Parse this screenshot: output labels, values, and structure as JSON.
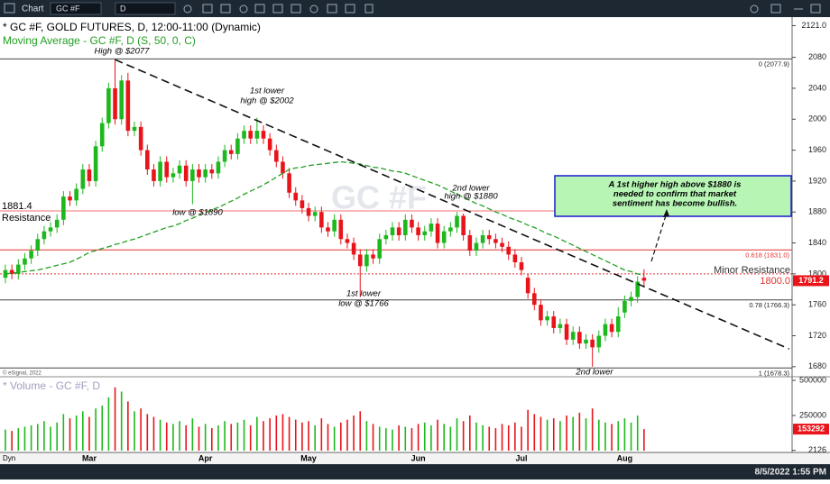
{
  "toolbar": {
    "title": "Chart",
    "symbol": "GC #F",
    "interval": "D"
  },
  "footer": {
    "mode": "Dyn",
    "timestamp": "8/5/2022 1:55 PM"
  },
  "copyright": "© eSignal, 2022",
  "chart_data": [
    {
      "type": "candlestick",
      "title": "* GC #F, GOLD FUTURES, D, 12:00-11:00 (Dynamic)",
      "watermark": "GC #F",
      "categories": [
        null,
        null,
        null,
        null,
        null,
        null,
        null,
        null,
        null,
        null,
        null,
        null,
        null,
        "Mar",
        null,
        null,
        null,
        null,
        null,
        null,
        null,
        null,
        null,
        null,
        null,
        null,
        null,
        null,
        null,
        null,
        null,
        "Apr",
        null,
        null,
        null,
        null,
        null,
        null,
        null,
        null,
        null,
        null,
        null,
        null,
        null,
        null,
        null,
        "May",
        null,
        null,
        null,
        null,
        null,
        null,
        null,
        null,
        null,
        null,
        null,
        null,
        null,
        null,
        null,
        null,
        "Jun",
        null,
        null,
        null,
        null,
        null,
        null,
        null,
        null,
        null,
        null,
        null,
        null,
        null,
        null,
        null,
        "Jul",
        null,
        null,
        null,
        null,
        null,
        null,
        null,
        null,
        null,
        null,
        null,
        null,
        null,
        null,
        null,
        "Aug",
        null,
        null,
        null
      ],
      "open": [
        1795,
        1805,
        1800,
        1812,
        1820,
        1830,
        1845,
        1855,
        1860,
        1870,
        1900,
        1895,
        1910,
        1935,
        1920,
        1965,
        1995,
        2040,
        2000,
        2050,
        1985,
        1990,
        1960,
        1935,
        1920,
        1945,
        1925,
        1930,
        1940,
        1920,
        1935,
        1925,
        1935,
        1930,
        1945,
        1960,
        1955,
        1975,
        1985,
        1975,
        1985,
        1975,
        1960,
        1945,
        1930,
        1905,
        1895,
        1885,
        1875,
        1880,
        1860,
        1855,
        1870,
        1845,
        1840,
        1825,
        1810,
        1825,
        1820,
        1845,
        1850,
        1860,
        1850,
        1870,
        1860,
        1850,
        1855,
        1865,
        1840,
        1855,
        1860,
        1875,
        1850,
        1830,
        1840,
        1850,
        1845,
        1840,
        1835,
        1825,
        1815,
        1795,
        1775,
        1760,
        1740,
        1745,
        1730,
        1735,
        1715,
        1725,
        1710,
        1715,
        1705,
        1720,
        1735,
        1725,
        1750,
        1765,
        1770,
        1795
      ],
      "high": [
        1812,
        1812,
        1819,
        1827,
        1837,
        1852,
        1862,
        1867,
        1877,
        1907,
        1907,
        1917,
        1942,
        1942,
        1972,
        2002,
        2047,
        2077,
        2057,
        2060,
        1997,
        1997,
        1967,
        1942,
        1952,
        1952,
        1937,
        1947,
        1947,
        1942,
        1942,
        1942,
        1942,
        1952,
        1967,
        1967,
        1982,
        1992,
        1992,
        2002,
        1992,
        1982,
        1967,
        1952,
        1937,
        1912,
        1902,
        1892,
        1887,
        1887,
        1867,
        1877,
        1877,
        1852,
        1847,
        1832,
        1832,
        1832,
        1852,
        1857,
        1867,
        1867,
        1877,
        1877,
        1867,
        1862,
        1872,
        1872,
        1862,
        1867,
        1880,
        1878,
        1857,
        1847,
        1857,
        1857,
        1852,
        1847,
        1842,
        1832,
        1822,
        1800,
        1782,
        1767,
        1752,
        1752,
        1742,
        1742,
        1732,
        1732,
        1722,
        1722,
        1727,
        1742,
        1742,
        1757,
        1772,
        1777,
        1797,
        1806
      ],
      "low": [
        1788,
        1793,
        1793,
        1805,
        1813,
        1823,
        1838,
        1848,
        1853,
        1863,
        1888,
        1888,
        1903,
        1913,
        1913,
        1958,
        1988,
        1993,
        1993,
        1978,
        1978,
        1953,
        1928,
        1913,
        1913,
        1918,
        1918,
        1923,
        1913,
        1890,
        1918,
        1918,
        1923,
        1923,
        1938,
        1948,
        1948,
        1968,
        1968,
        1968,
        1968,
        1953,
        1938,
        1923,
        1898,
        1888,
        1878,
        1868,
        1868,
        1853,
        1848,
        1848,
        1838,
        1833,
        1818,
        1770,
        1803,
        1813,
        1813,
        1838,
        1843,
        1843,
        1843,
        1853,
        1843,
        1843,
        1848,
        1833,
        1833,
        1848,
        1853,
        1843,
        1823,
        1823,
        1833,
        1838,
        1833,
        1828,
        1818,
        1808,
        1798,
        1768,
        1753,
        1733,
        1733,
        1723,
        1723,
        1708,
        1708,
        1703,
        1703,
        1680,
        1698,
        1713,
        1718,
        1718,
        1743,
        1758,
        1763,
        1784
      ],
      "close": [
        1805,
        1800,
        1812,
        1820,
        1830,
        1845,
        1855,
        1860,
        1870,
        1900,
        1895,
        1910,
        1935,
        1920,
        1965,
        1995,
        2040,
        2000,
        2050,
        1985,
        1990,
        1960,
        1935,
        1920,
        1945,
        1925,
        1930,
        1940,
        1920,
        1935,
        1925,
        1935,
        1930,
        1945,
        1960,
        1955,
        1975,
        1985,
        1975,
        1985,
        1975,
        1960,
        1945,
        1930,
        1905,
        1895,
        1885,
        1875,
        1880,
        1860,
        1855,
        1870,
        1845,
        1840,
        1825,
        1810,
        1825,
        1820,
        1845,
        1850,
        1860,
        1850,
        1870,
        1860,
        1850,
        1855,
        1865,
        1840,
        1855,
        1860,
        1875,
        1850,
        1830,
        1840,
        1850,
        1845,
        1840,
        1835,
        1825,
        1815,
        1805,
        1775,
        1760,
        1740,
        1745,
        1730,
        1735,
        1715,
        1725,
        1710,
        1715,
        1705,
        1720,
        1735,
        1725,
        1745,
        1765,
        1770,
        1790,
        1791.2
      ],
      "up_color": "#1db81d",
      "down_color": "#e8141a",
      "series": [
        {
          "name": "Moving Average - GC #F, D (S, 50, 0, C)",
          "color": "#22a022",
          "values": [
            1800,
            1801,
            1802,
            1803,
            1804,
            1805,
            1807,
            1809,
            1811,
            1813,
            1815,
            1819,
            1823,
            1828,
            1830,
            1833,
            1835,
            1838,
            1840,
            1843,
            1845,
            1848,
            1851,
            1854,
            1857,
            1860,
            1862,
            1865,
            1869,
            1872,
            1876,
            1879,
            1883,
            1886,
            1890,
            1894,
            1898,
            1903,
            1907,
            1911,
            1915,
            1920,
            1925,
            1930,
            1935,
            1937,
            1938,
            1940,
            1941,
            1942,
            1943,
            1944,
            1945,
            1944,
            1943,
            1942,
            1940,
            1938,
            1937,
            1935,
            1933,
            1932,
            1930,
            1927,
            1924,
            1921,
            1918,
            1915,
            1911,
            1907,
            1903,
            1899,
            1895,
            1891,
            1888,
            1884,
            1880,
            1877,
            1873,
            1870,
            1867,
            1863,
            1860,
            1856,
            1852,
            1849,
            1845,
            1841,
            1837,
            1833,
            1829,
            1825,
            1821,
            1817,
            1813,
            1809,
            1805,
            1803,
            1800,
            1798
          ]
        }
      ],
      "ylim": [
        1667,
        2132
      ],
      "yticks": [
        1680,
        1720,
        1760,
        1800,
        1840,
        1880,
        1920,
        1960,
        2000,
        2040,
        2080,
        {
          "value": 2121,
          "label": "2121.0"
        }
      ],
      "grid": false,
      "levels": [
        {
          "value": 2077.9,
          "label": "0 (2077.9)",
          "color": "#444444"
        },
        {
          "value": 1831,
          "label": "0.618 (1831.0)",
          "color": "#e03030"
        },
        {
          "value": 1766.3,
          "label": "0.78 (1766.3)",
          "color": "#444444"
        },
        {
          "value": 1678.3,
          "label": "1 (1678.3)",
          "color": "#444444"
        }
      ],
      "resistance": [
        {
          "value": 1881.4,
          "value_label": "1881.4",
          "name": "Resistance",
          "color": "#f07070"
        },
        {
          "value": 1800,
          "value_label": "1800.0",
          "name": "Minor Resistance",
          "color": "#e03030"
        }
      ],
      "trendline": {
        "from": [
          17,
          2077
        ],
        "to": [
          121.5,
          1703
        ]
      },
      "annotations": [
        {
          "lines": [
            "High @ $2077"
          ]
        },
        {
          "lines": [
            "1st lower",
            "high @ $2002"
          ]
        },
        {
          "lines": [
            "low @ $1890"
          ]
        },
        {
          "lines": [
            "1st lower",
            "low @ $1766"
          ]
        },
        {
          "lines": [
            "2nd  lower",
            "high @ $1880"
          ]
        },
        {
          "lines": [
            "2nd lower"
          ]
        }
      ],
      "note_box": {
        "lines": [
          "A 1st higher high above  $1880 is",
          "needed to confirm that market",
          "sentiment has become bullish."
        ]
      }
    },
    {
      "type": "bar",
      "title": "* Volume - GC #F, D",
      "values": [
        150000,
        140000,
        160000,
        170000,
        180000,
        190000,
        210000,
        170000,
        200000,
        260000,
        230000,
        250000,
        280000,
        240000,
        300000,
        320000,
        380000,
        450000,
        420000,
        350000,
        280000,
        300000,
        260000,
        240000,
        220000,
        200000,
        190000,
        210000,
        180000,
        230000,
        170000,
        190000,
        160000,
        180000,
        210000,
        190000,
        200000,
        220000,
        180000,
        240000,
        210000,
        230000,
        250000,
        260000,
        240000,
        220000,
        200000,
        210000,
        180000,
        230000,
        190000,
        170000,
        200000,
        220000,
        250000,
        280000,
        210000,
        190000,
        170000,
        160000,
        150000,
        180000,
        170000,
        160000,
        190000,
        200000,
        180000,
        220000,
        190000,
        170000,
        230000,
        210000,
        250000,
        200000,
        180000,
        170000,
        160000,
        190000,
        180000,
        200000,
        170000,
        290000,
        260000,
        240000,
        220000,
        230000,
        210000,
        250000,
        240000,
        270000,
        230000,
        300000,
        220000,
        200000,
        190000,
        210000,
        230000,
        200000,
        250000,
        153292
      ],
      "ylim": [
        0,
        512800
      ],
      "yticks": [
        2126,
        250000,
        500000
      ]
    }
  ]
}
